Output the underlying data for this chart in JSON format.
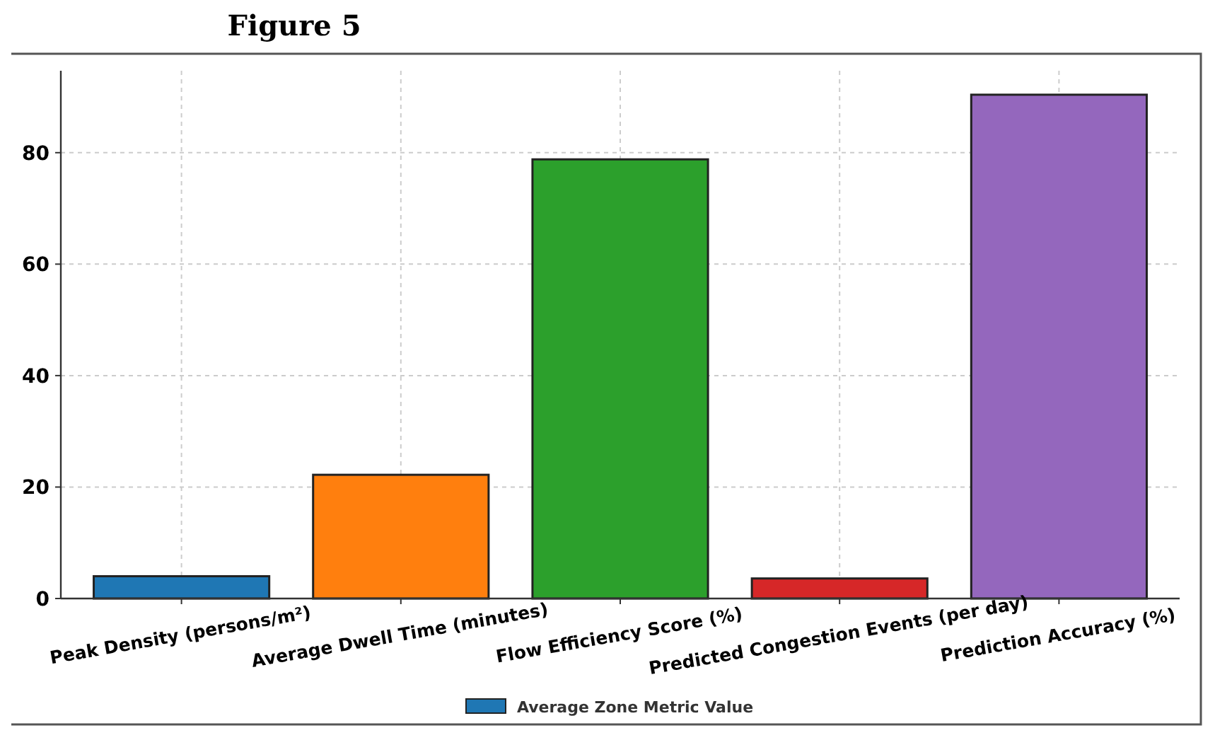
{
  "chart_data": {
    "type": "bar",
    "title": "Figure 5",
    "categories": [
      "Peak Density (persons/m²)",
      "Average Dwell Time (minutes)",
      "Flow Efficiency Score (%)",
      "Predicted Congestion Events (per day)",
      "Prediction Accuracy (%)"
    ],
    "series": [
      {
        "name": "Average Zone Metric Value",
        "color": "#1f77b4",
        "colors": [
          "#1f77b4",
          "#ff7f0e",
          "#2ca02c",
          "#d62728",
          "#9467bd"
        ],
        "values": [
          4.0,
          22.2,
          78.8,
          3.6,
          90.4
        ]
      }
    ],
    "ylim": [
      0,
      94.7
    ],
    "yticks": [
      0,
      20,
      40,
      60,
      80
    ],
    "grid": true,
    "legend": "bottom"
  }
}
